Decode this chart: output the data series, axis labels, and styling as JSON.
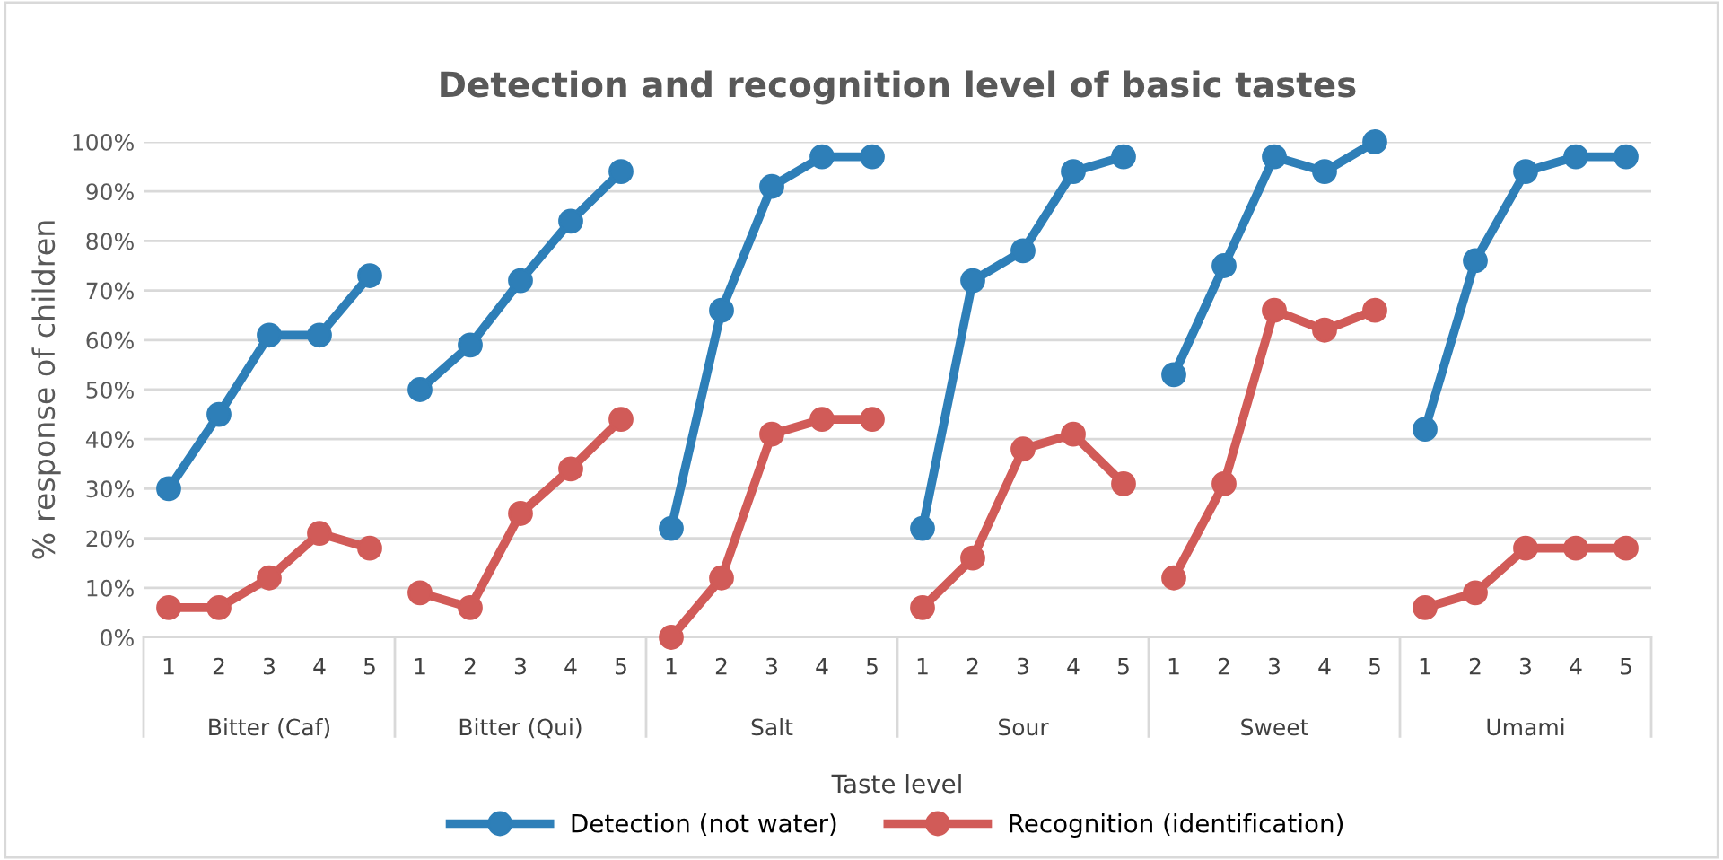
{
  "chart_data": {
    "type": "line",
    "title": "Detection and recognition level of basic tastes",
    "xlabel": "Taste level",
    "ylabel": "% response of children",
    "categories": [
      "1",
      "2",
      "3",
      "4",
      "5",
      "1",
      "2",
      "3",
      "4",
      "5",
      "1",
      "2",
      "3",
      "4",
      "5",
      "1",
      "2",
      "3",
      "4",
      "5",
      "1",
      "2",
      "3",
      "4",
      "5",
      "1",
      "2",
      "3",
      "4",
      "5"
    ],
    "annotations": [
      "Bitter (Caf)",
      "Bitter (Qui)",
      "Salt",
      "Sour",
      "Sweet",
      "Umami"
    ],
    "series": [
      {
        "name": "Detection (not water)",
        "color": "#2e7fb8",
        "values": [
          30,
          45,
          61,
          61,
          73,
          50,
          59,
          72,
          84,
          94,
          22,
          66,
          91,
          97,
          97,
          22,
          72,
          78,
          94,
          97,
          53,
          75,
          97,
          94,
          100,
          42,
          76,
          94,
          97,
          97
        ]
      },
      {
        "name": "Recognition (identification)",
        "color": "#d15b58",
        "values": [
          6,
          6,
          12,
          21,
          18,
          9,
          6,
          25,
          34,
          44,
          0,
          12,
          41,
          44,
          44,
          6,
          16,
          38,
          41,
          31,
          12,
          31,
          66,
          62,
          66,
          6,
          9,
          18,
          18,
          18
        ]
      }
    ],
    "ylim": [
      0,
      100
    ],
    "yticks": [
      {
        "value": 0,
        "label": "0%"
      },
      {
        "value": 10,
        "label": "10%"
      },
      {
        "value": 20,
        "label": "20%"
      },
      {
        "value": 30,
        "label": "30%"
      },
      {
        "value": 40,
        "label": "40%"
      },
      {
        "value": 50,
        "label": "50%"
      },
      {
        "value": 60,
        "label": "60%"
      },
      {
        "value": 70,
        "label": "70%"
      },
      {
        "value": 80,
        "label": "80%"
      },
      {
        "value": 90,
        "label": "90%"
      },
      {
        "value": 100,
        "label": "100%"
      }
    ],
    "grid": "y",
    "legend": "bottom",
    "marker": "circle",
    "line_style": "solid"
  }
}
